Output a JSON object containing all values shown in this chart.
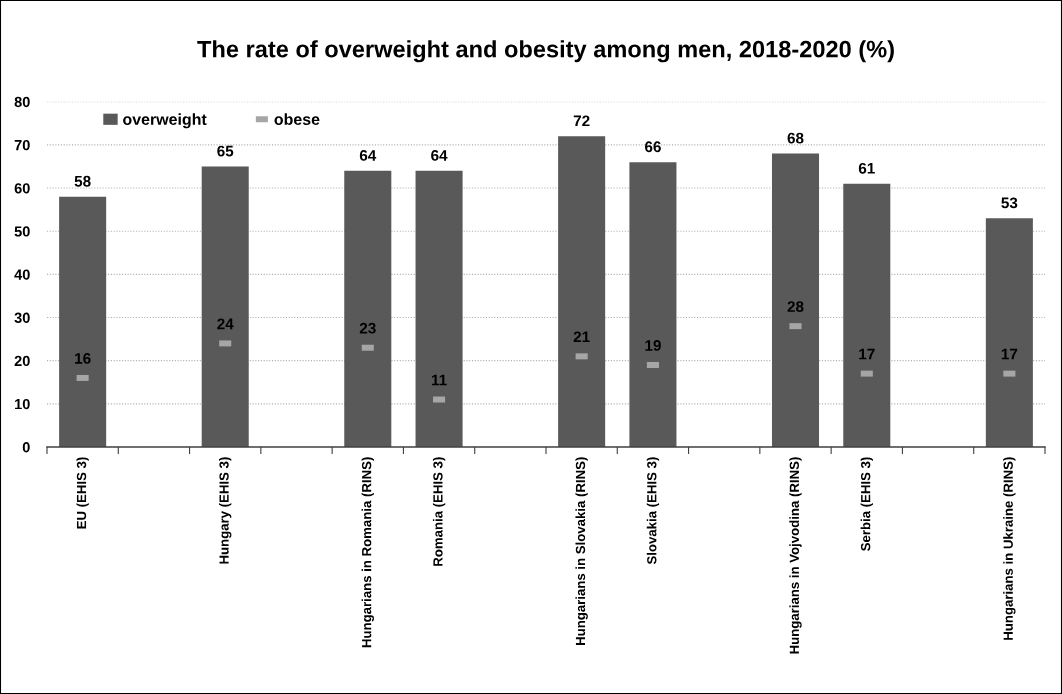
{
  "chart_data": {
    "type": "bar",
    "title": "The rate of overweight and obesity among men, 2018-2020 (%)",
    "categories": [
      "EU (EHIS 3)",
      null,
      "Hungary (EHIS 3)",
      null,
      "Hungarians in Romania (RINS)",
      "Romania (EHIS 3)",
      null,
      "Hungarians in Slovakia (RINS)",
      "Slovakia (EHIS 3)",
      null,
      "Hungarians in Vojvodina (RINS)",
      "Serbia (EHIS 3)",
      null,
      "Hungarians in Ukraine (RINS)"
    ],
    "series": [
      {
        "name": "overweight",
        "color": "#595959",
        "values": [
          58,
          null,
          65,
          null,
          64,
          64,
          null,
          72,
          66,
          null,
          68,
          61,
          null,
          53
        ]
      },
      {
        "name": "obese",
        "type": "scatter",
        "color": "#a6a6a6",
        "values": [
          16,
          null,
          24,
          null,
          23,
          11,
          null,
          21,
          19,
          null,
          28,
          17,
          null,
          17
        ]
      }
    ],
    "ylim": [
      0,
      80
    ],
    "yticks": [
      0,
      10,
      20,
      30,
      40,
      50,
      60,
      70,
      80
    ],
    "grid": "y",
    "legend": "top left",
    "marker": "square",
    "data_labels": true
  }
}
